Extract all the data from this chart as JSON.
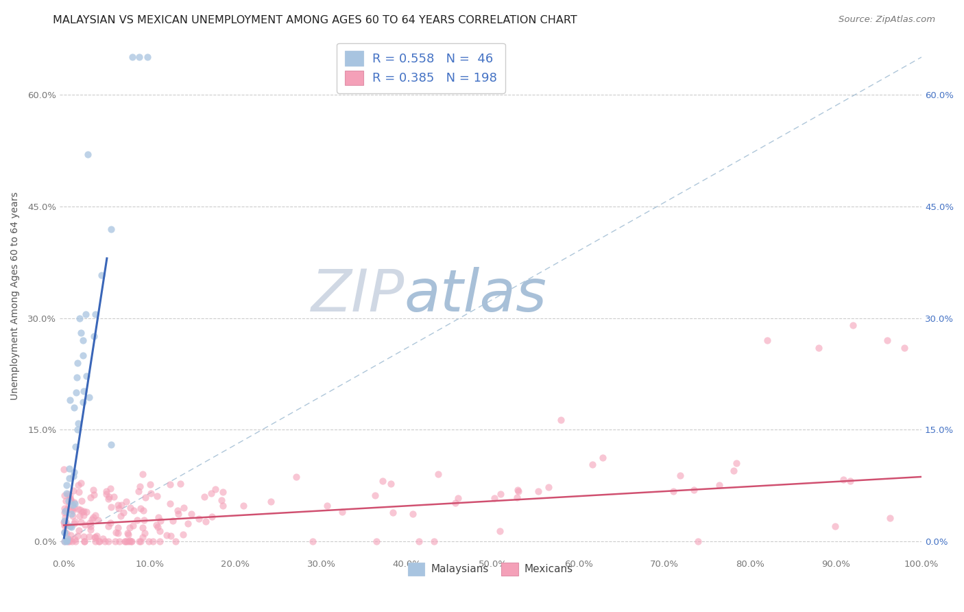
{
  "title": "MALAYSIAN VS MEXICAN UNEMPLOYMENT AMONG AGES 60 TO 64 YEARS CORRELATION CHART",
  "source": "Source: ZipAtlas.com",
  "ylabel": "Unemployment Among Ages 60 to 64 years",
  "xlim": [
    -0.005,
    1.0
  ],
  "ylim": [
    -0.02,
    0.68
  ],
  "xtick_vals": [
    0.0,
    0.1,
    0.2,
    0.3,
    0.4,
    0.5,
    0.6,
    0.7,
    0.8,
    0.9,
    1.0
  ],
  "xtick_labels": [
    "0.0%",
    "10.0%",
    "20.0%",
    "30.0%",
    "40.0%",
    "50.0%",
    "60.0%",
    "70.0%",
    "80.0%",
    "90.0%",
    "100.0%"
  ],
  "ytick_vals": [
    0.0,
    0.15,
    0.3,
    0.45,
    0.6
  ],
  "ytick_labels": [
    "0.0%",
    "15.0%",
    "30.0%",
    "45.0%",
    "60.0%"
  ],
  "right_ytick_labels": [
    "0.0%",
    "15.0%",
    "30.0%",
    "45.0%",
    "60.0%"
  ],
  "malaysian_R": 0.558,
  "malaysian_N": 46,
  "mexican_R": 0.385,
  "mexican_N": 198,
  "malaysian_color": "#a8c4e0",
  "mexican_color": "#f4a0b8",
  "malaysian_line_color": "#3a66b8",
  "mexican_line_color": "#d05070",
  "ref_line_color": "#9ab8d0",
  "bg_color": "#ffffff",
  "watermark_zip_color": "#d0d8e4",
  "watermark_atlas_color": "#a8c0d8",
  "grid_color": "#cccccc",
  "title_color": "#222222",
  "axis_label_color": "#555555",
  "tick_color": "#777777",
  "right_tick_color": "#4472c4",
  "source_color": "#777777",
  "legend_text_color": "#4472c4",
  "malaysian_slope": 7.5,
  "malaysian_intercept": 0.005,
  "mexican_slope": 0.065,
  "mexican_intercept": 0.022
}
